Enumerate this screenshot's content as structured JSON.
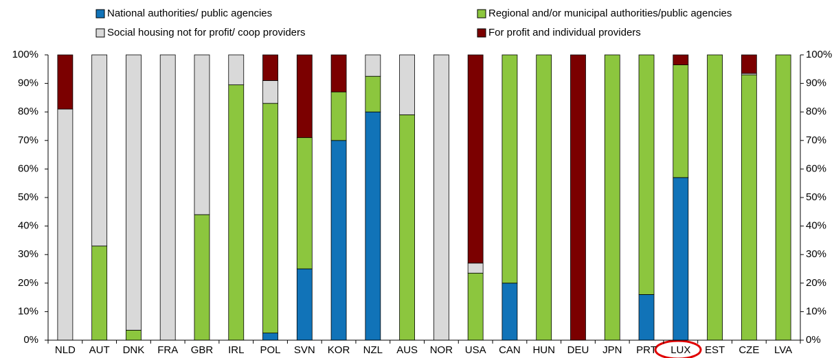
{
  "chart_data": {
    "type": "stacked_bar",
    "categories": [
      "NLD",
      "AUT",
      "DNK",
      "FRA",
      "GBR",
      "IRL",
      "POL",
      "SVN",
      "KOR",
      "NZL",
      "AUS",
      "NOR",
      "USA",
      "CAN",
      "HUN",
      "DEU",
      "JPN",
      "PRT",
      "LUX",
      "EST",
      "CZE",
      "LVA"
    ],
    "series": [
      {
        "name": "National authorities/ public agencies",
        "color": "#1173b8",
        "values": [
          0,
          0,
          0,
          0,
          0,
          0,
          2.5,
          25,
          70,
          80,
          0,
          0,
          0,
          20,
          0,
          0,
          0,
          16,
          57,
          0,
          0,
          0
        ]
      },
      {
        "name": "Regional and/or municipal authorities/public agencies",
        "color": "#8cc63e",
        "values": [
          0,
          33,
          3.5,
          0,
          44,
          89.5,
          80.5,
          46,
          17,
          12.5,
          79,
          0,
          23.5,
          80,
          100,
          0,
          100,
          84,
          39.5,
          100,
          93,
          100
        ]
      },
      {
        "name": "Social housing not for profit/ coop providers",
        "color": "#d9d9d9",
        "values": [
          81,
          67,
          96.5,
          100,
          56,
          10.5,
          8,
          0,
          0,
          7.5,
          21,
          100,
          3.5,
          0,
          0,
          0,
          0,
          0,
          0,
          0,
          0.5,
          0
        ]
      },
      {
        "name": "For profit and individual providers",
        "color": "#7b0000",
        "values": [
          19,
          0,
          0,
          0,
          0,
          0,
          9,
          29,
          13,
          0,
          0,
          0,
          73,
          0,
          0,
          100,
          0,
          0,
          3.5,
          0,
          6.5,
          0
        ]
      }
    ],
    "ylim": [
      0,
      100
    ],
    "yticks": [
      {
        "value": 0,
        "label": "0%"
      },
      {
        "value": 10,
        "label": "10%"
      },
      {
        "value": 20,
        "label": "20%"
      },
      {
        "value": 30,
        "label": "30%"
      },
      {
        "value": 40,
        "label": "40%"
      },
      {
        "value": 50,
        "label": "50%"
      },
      {
        "value": 60,
        "label": "60%"
      },
      {
        "value": 70,
        "label": "70%"
      },
      {
        "value": 80,
        "label": "80%"
      },
      {
        "value": 90,
        "label": "90%"
      },
      {
        "value": 100,
        "label": "100%"
      }
    ],
    "y2lim": [
      0,
      100
    ],
    "y2ticks": [
      {
        "value": 0,
        "label": "0%"
      },
      {
        "value": 10,
        "label": "10%"
      },
      {
        "value": 20,
        "label": "20%"
      },
      {
        "value": 30,
        "label": "30%"
      },
      {
        "value": 40,
        "label": "40%"
      },
      {
        "value": 50,
        "label": "50%"
      },
      {
        "value": 60,
        "label": "60%"
      },
      {
        "value": 70,
        "label": "70%"
      },
      {
        "value": 80,
        "label": "80%"
      },
      {
        "value": 90,
        "label": "90%"
      },
      {
        "value": 100,
        "label": "100%"
      }
    ],
    "grid": false
  }
}
